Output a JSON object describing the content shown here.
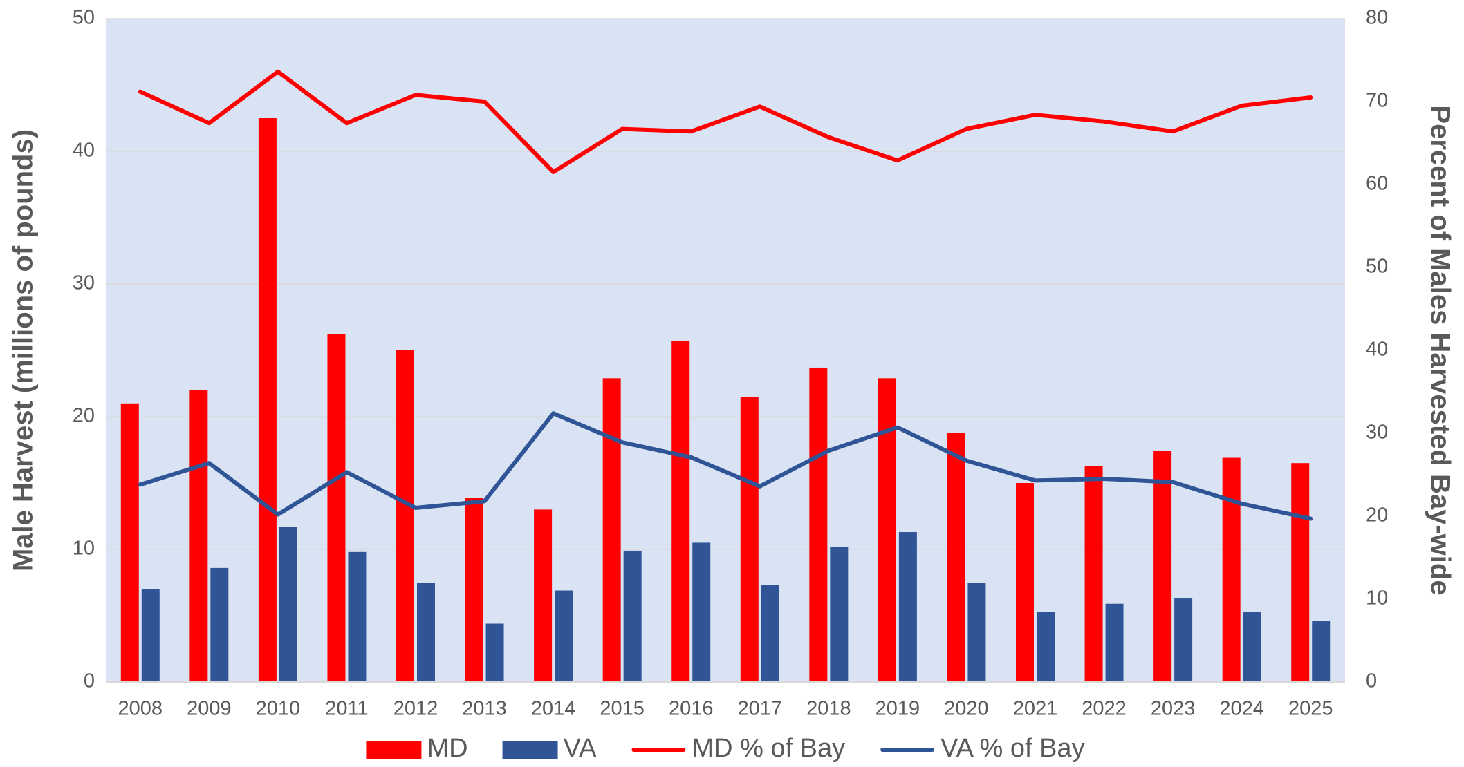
{
  "chart_data": {
    "type": "bar",
    "ylabel": "Male Harvest (millions of pounds)",
    "y2label": "Percent of Males Harvested Bay-wide",
    "categories": [
      "2008",
      "2009",
      "2010",
      "2011",
      "2012",
      "2013",
      "2014",
      "2015",
      "2016",
      "2017",
      "2018",
      "2019",
      "2020",
      "2021",
      "2022",
      "2023",
      "2024",
      "2025"
    ],
    "series": [
      {
        "name": "MD",
        "type": "bar",
        "color": "#ff0000",
        "values": [
          21.0,
          22.0,
          42.5,
          26.2,
          25.0,
          13.9,
          13.0,
          22.9,
          25.7,
          21.5,
          23.7,
          22.9,
          18.8,
          15.0,
          16.3,
          17.4,
          16.9,
          16.5
        ]
      },
      {
        "name": "VA",
        "type": "bar",
        "color": "#2f5597",
        "values": [
          7.0,
          8.6,
          11.7,
          9.8,
          7.5,
          4.4,
          6.9,
          9.9,
          10.5,
          7.3,
          10.2,
          11.3,
          7.5,
          5.3,
          5.9,
          6.3,
          5.3,
          4.6
        ]
      },
      {
        "name": "MD % of Bay",
        "type": "line",
        "axis": "y2",
        "color": "#ff0000",
        "values": [
          71.2,
          67.4,
          73.6,
          67.4,
          70.8,
          70.0,
          61.5,
          66.7,
          66.4,
          69.4,
          65.7,
          62.9,
          66.7,
          68.4,
          67.6,
          66.4,
          69.5,
          70.5
        ]
      },
      {
        "name": "VA % of Bay",
        "type": "line",
        "axis": "y2",
        "color": "#2f5597",
        "values": [
          23.8,
          26.4,
          20.2,
          25.3,
          21.0,
          21.8,
          32.4,
          28.9,
          27.1,
          23.6,
          27.9,
          30.7,
          26.7,
          24.3,
          24.5,
          24.1,
          21.5,
          19.7
        ]
      }
    ],
    "ylim": [
      0,
      50
    ],
    "yticks": [
      0,
      10,
      20,
      30,
      40,
      50
    ],
    "y2lim": [
      0,
      80
    ],
    "y2ticks": [
      0,
      10,
      20,
      30,
      40,
      50,
      60,
      70,
      80
    ],
    "grid": true,
    "legend": "bottom"
  }
}
